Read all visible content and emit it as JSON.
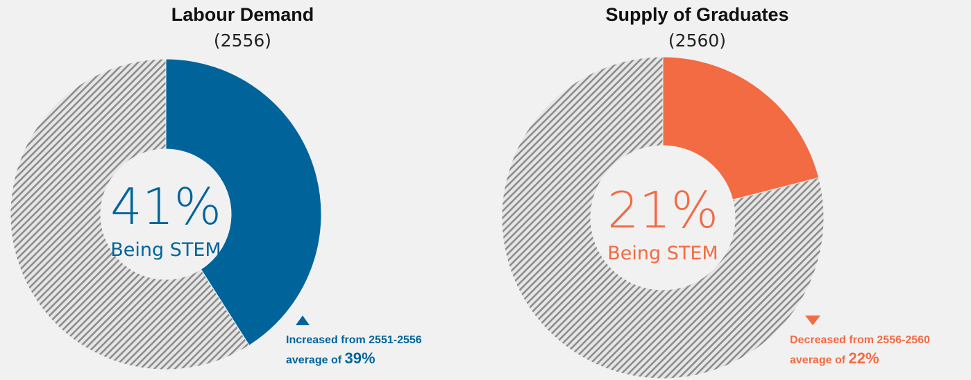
{
  "colors": {
    "blue": "#00649b",
    "orange": "#f26b43",
    "hatch": "#8c8c8c",
    "background": "#f1f1f1"
  },
  "panels": [
    {
      "title": "Labour Demand",
      "year": "(2556)",
      "percent_text": "41%",
      "caption": "Being STEM",
      "note_line1": "Increased from 2551-2556",
      "note_line2_prefix": "average of ",
      "note_line2_value": "39%",
      "arrow_icon": "triangle-up-icon"
    },
    {
      "title": "Supply of Graduates",
      "year": "(2560)",
      "percent_text": "21%",
      "caption": "Being STEM",
      "note_line1": "Decreased from 2556-2560",
      "note_line2_prefix": "average of ",
      "note_line2_value": "22%",
      "arrow_icon": "triangle-down-icon"
    }
  ],
  "chart_data": [
    {
      "type": "pie",
      "style": "donut",
      "slices": [
        {
          "label": "Being STEM",
          "value": 41
        },
        {
          "label": "",
          "value": 59
        }
      ],
      "title": "Labour Demand",
      "subtitle": "(2556)",
      "annotation": "Increased from 2551-2556 average of 39%",
      "legend": "none"
    },
    {
      "type": "pie",
      "style": "donut",
      "slices": [
        {
          "label": "Being STEM",
          "value": 21
        },
        {
          "label": "",
          "value": 79
        }
      ],
      "title": "Supply of Graduates",
      "subtitle": "(2560)",
      "annotation": "Decreased from 2556-2560 average of 22%",
      "legend": "none"
    }
  ]
}
